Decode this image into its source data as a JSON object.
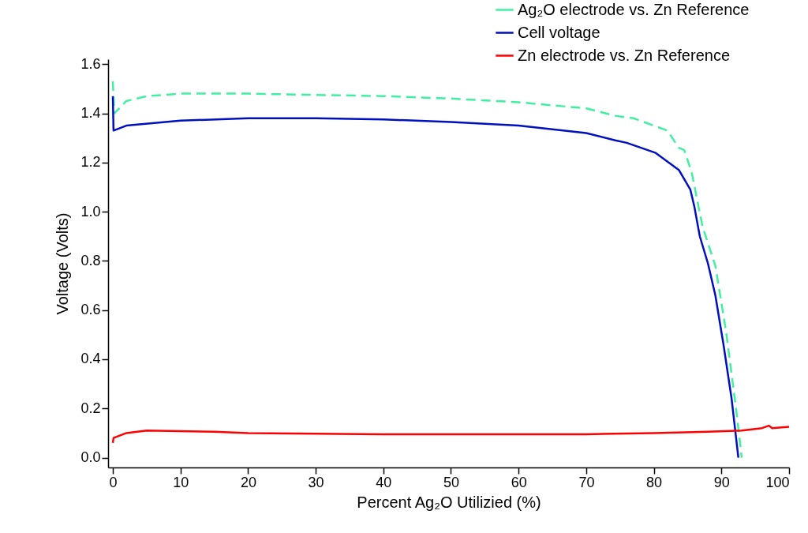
{
  "chart_data": {
    "type": "line",
    "xlabel": "Percent Ag₂O Utilizied (%)",
    "ylabel": "Voltage (Volts)",
    "xlim": [
      -0.7,
      100
    ],
    "ylim": [
      -0.04,
      1.62
    ],
    "xticks": [
      0,
      10,
      20,
      30,
      40,
      50,
      60,
      70,
      80,
      90,
      100
    ],
    "yticks": [
      {
        "value": 0,
        "label": "0.0"
      },
      0.2,
      0.4,
      0.6,
      0.8,
      {
        "value": 1,
        "label": "1.0"
      },
      1.2,
      1.4,
      1.6
    ],
    "grid": false,
    "legend": "top right",
    "series": [
      {
        "name": "Ag₂O electrode vs. Zn Reference",
        "color": "#40f0a0",
        "line_style": "dashed",
        "x": [
          0,
          0.2,
          2,
          5,
          10,
          20,
          30,
          40,
          50,
          60,
          70,
          74.3,
          77,
          82,
          83.7,
          84.5,
          85.6,
          87.2,
          89.1,
          90.7,
          92.2,
          93.0
        ],
        "values": [
          1.53,
          1.4,
          1.45,
          1.47,
          1.48,
          1.48,
          1.475,
          1.47,
          1.46,
          1.445,
          1.42,
          1.39,
          1.38,
          1.33,
          1.26,
          1.25,
          1.16,
          0.94,
          0.78,
          0.51,
          0.19,
          0.0
        ]
      },
      {
        "name": "Cell voltage",
        "color": "#0010c0",
        "line_style": "solid",
        "x": [
          0,
          0.1,
          2,
          10,
          20,
          30,
          40,
          50,
          60,
          70,
          74.3,
          76,
          80.2,
          83.7,
          85.4,
          86.0,
          86.8,
          88.0,
          89.1,
          90.3,
          91.5,
          92.5
        ],
        "values": [
          1.47,
          1.33,
          1.35,
          1.37,
          1.38,
          1.38,
          1.375,
          1.365,
          1.35,
          1.32,
          1.29,
          1.28,
          1.24,
          1.17,
          1.09,
          1.02,
          0.9,
          0.79,
          0.66,
          0.46,
          0.24,
          0.0
        ]
      },
      {
        "name": "Zn electrode vs. Zn Reference",
        "color": "#ff0000",
        "line_style": "solid",
        "x": [
          0,
          0.1,
          2,
          5,
          15,
          20,
          40,
          60,
          70,
          80,
          88,
          93,
          96,
          97,
          97.5,
          100
        ],
        "values": [
          0.06,
          0.08,
          0.1,
          0.11,
          0.105,
          0.1,
          0.095,
          0.095,
          0.095,
          0.1,
          0.105,
          0.11,
          0.12,
          0.13,
          0.12,
          0.125
        ]
      }
    ]
  }
}
